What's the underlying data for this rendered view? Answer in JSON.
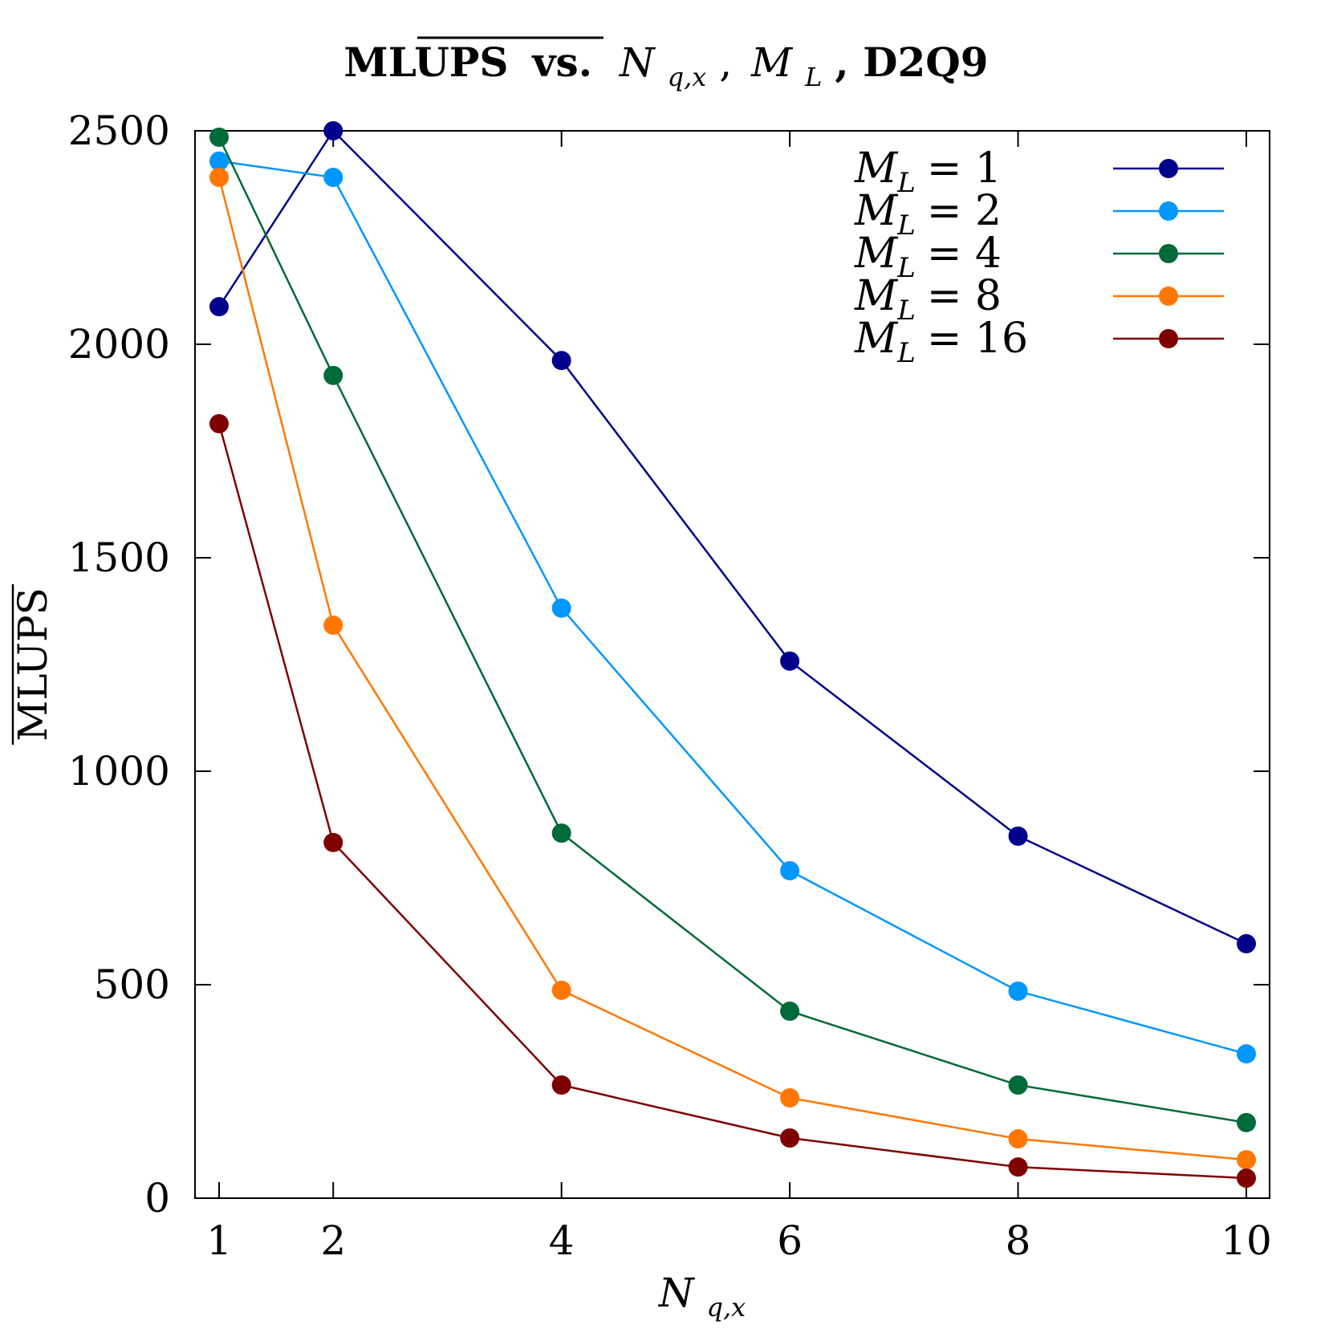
{
  "chart_data": {
    "type": "line",
    "title": "MLUPS (overlined) vs. N_{q,x}, M_L, D2Q9",
    "title_parts": {
      "main": "MLUPS",
      "vs": "vs.",
      "n": "N",
      "n_sub": "q,x",
      "sep": ",",
      "m": "M",
      "m_sub": "L",
      "suffix": ", D2Q9"
    },
    "xlabel": "N_{q,x}",
    "xlabel_parts": {
      "main": "N",
      "sub": "q,x"
    },
    "ylabel": "MLUPS (overlined)",
    "ylabel_text": "MLUPS",
    "x": [
      1,
      2,
      4,
      6,
      8,
      10
    ],
    "xticks": [
      1,
      2,
      4,
      6,
      8,
      10
    ],
    "yticks": [
      0,
      500,
      1000,
      1500,
      2000,
      2500
    ],
    "xlim": [
      0.8,
      10.2
    ],
    "ylim": [
      0,
      2500
    ],
    "grid": false,
    "legend_position": "top-right",
    "series": [
      {
        "name": "M_L = 1",
        "label_value": "1",
        "color": "#00008b",
        "values": [
          2088,
          2500,
          1962,
          1258,
          848,
          596
        ]
      },
      {
        "name": "M_L = 2",
        "label_value": "2",
        "color": "#0096ff",
        "values": [
          2429,
          2391,
          1382,
          767,
          485,
          338
        ]
      },
      {
        "name": "M_L = 4",
        "label_value": "4",
        "color": "#006a38",
        "values": [
          2485,
          1927,
          855,
          438,
          265,
          177
        ]
      },
      {
        "name": "M_L = 8",
        "label_value": "8",
        "color": "#ff7700",
        "values": [
          2391,
          1342,
          487,
          235,
          139,
          90
        ]
      },
      {
        "name": "M_L = 16",
        "label_value": "16",
        "color": "#7f0000",
        "values": [
          1814,
          833,
          265,
          141,
          73,
          47
        ]
      }
    ]
  }
}
